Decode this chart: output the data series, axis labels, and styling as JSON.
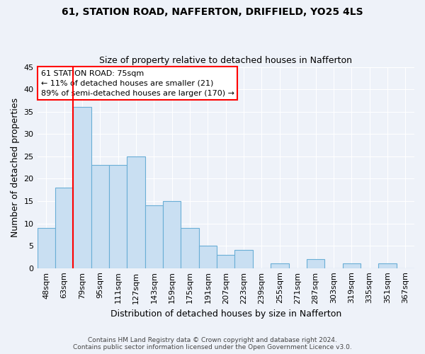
{
  "title1": "61, STATION ROAD, NAFFERTON, DRIFFIELD, YO25 4LS",
  "title2": "Size of property relative to detached houses in Nafferton",
  "xlabel": "Distribution of detached houses by size in Nafferton",
  "ylabel": "Number of detached properties",
  "categories": [
    "48sqm",
    "63sqm",
    "79sqm",
    "95sqm",
    "111sqm",
    "127sqm",
    "143sqm",
    "159sqm",
    "175sqm",
    "191sqm",
    "207sqm",
    "223sqm",
    "239sqm",
    "255sqm",
    "271sqm",
    "287sqm",
    "303sqm",
    "319sqm",
    "335sqm",
    "351sqm",
    "367sqm"
  ],
  "values": [
    9,
    18,
    36,
    23,
    23,
    25,
    14,
    15,
    9,
    5,
    3,
    4,
    0,
    1,
    0,
    2,
    0,
    1,
    0,
    1,
    0
  ],
  "bar_color": "#c9dff2",
  "bar_edge_color": "#6aaed6",
  "ylim": [
    0,
    45
  ],
  "yticks": [
    0,
    5,
    10,
    15,
    20,
    25,
    30,
    35,
    40,
    45
  ],
  "red_line_index": 2,
  "annotation_title": "61 STATION ROAD: 75sqm",
  "annotation_line1": "← 11% of detached houses are smaller (21)",
  "annotation_line2": "89% of semi-detached houses are larger (170) →",
  "footer1": "Contains HM Land Registry data © Crown copyright and database right 2024.",
  "footer2": "Contains public sector information licensed under the Open Government Licence v3.0.",
  "bg_color": "#eef2f9",
  "plot_bg_color": "#eef2f9",
  "grid_color": "#ffffff",
  "title1_fontsize": 10,
  "title2_fontsize": 9,
  "ylabel_fontsize": 9,
  "xlabel_fontsize": 9,
  "tick_fontsize": 8,
  "footer_fontsize": 6.5,
  "ann_fontsize": 8
}
